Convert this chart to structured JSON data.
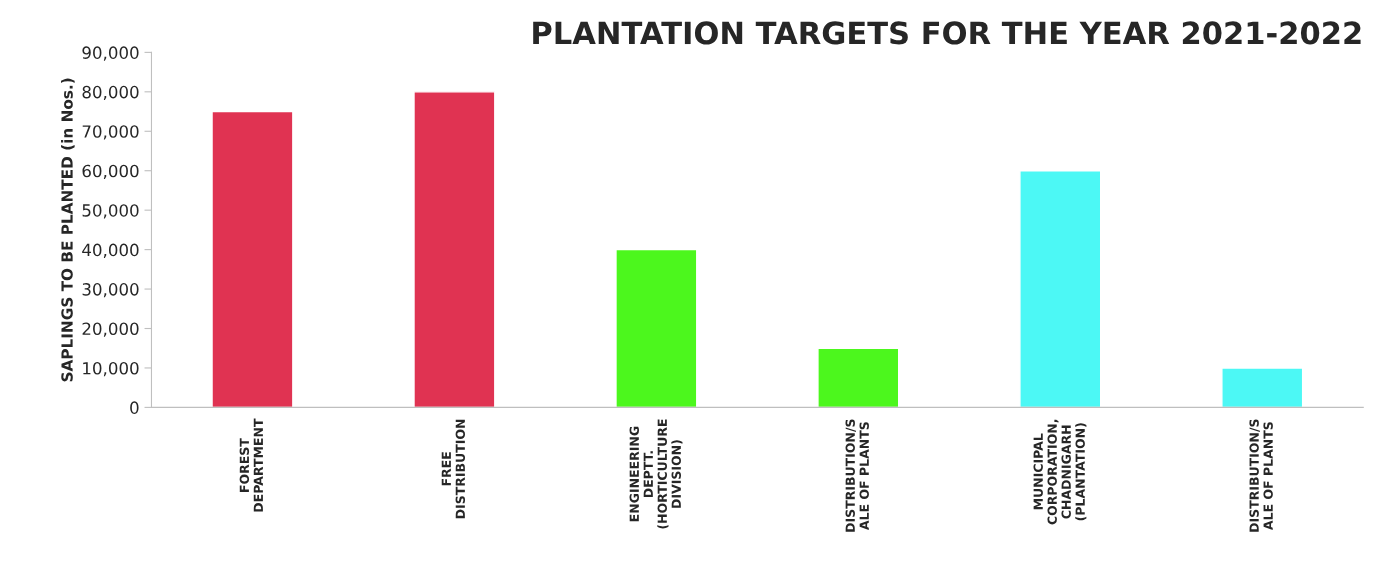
{
  "chart_data": {
    "type": "bar",
    "title": "PLANTATION TARGETS FOR THE YEAR 2021-2022",
    "ylabel": "SAPLINGS TO BE PLANTED (in Nos.)",
    "categories": [
      "FOREST\nDEPARTMENT",
      "FREE\nDISTRIBUTION",
      "ENGINEERING\nDEPTT.\n(HORTICULTURE\nDIVISION)",
      "DISTRIBUTION/S\nALE OF PLANTS",
      "MUNICIPAL\nCORPORATION,\nCHADNIGARH\n(PLANTATION)",
      "DISTRIBUTION/S\nALE OF PLANTS"
    ],
    "values": [
      75000,
      80000,
      40000,
      15000,
      60000,
      10000
    ],
    "colors": [
      "#e03352",
      "#e03352",
      "#4cf71d",
      "#4cf71d",
      "#4cf8f5",
      "#4cf8f5"
    ],
    "ylim": [
      0,
      90000
    ],
    "yticks": [
      {
        "value": 0,
        "label": "0"
      },
      {
        "value": 10000,
        "label": "10,000"
      },
      {
        "value": 20000,
        "label": "20,000"
      },
      {
        "value": 30000,
        "label": "30,000"
      },
      {
        "value": 40000,
        "label": "40,000"
      },
      {
        "value": 50000,
        "label": "50,000"
      },
      {
        "value": 60000,
        "label": "60,000"
      },
      {
        "value": 70000,
        "label": "70,000"
      },
      {
        "value": 80000,
        "label": "80,000"
      },
      {
        "value": 90000,
        "label": "90,000"
      }
    ],
    "grid": false,
    "legend": false
  }
}
